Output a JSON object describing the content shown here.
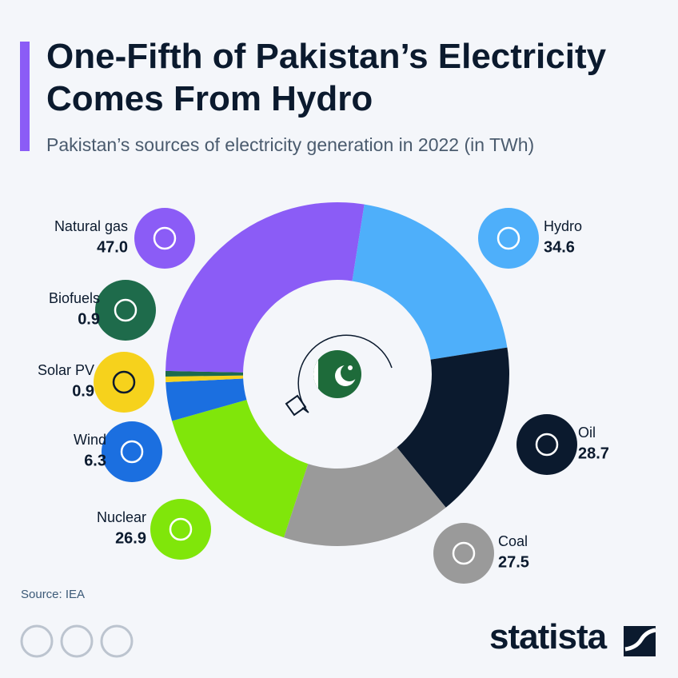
{
  "chart_data": {
    "type": "donut",
    "title": "One-Fifth of Pakistan’s Electricity Comes From Hydro",
    "subtitle": "Pakistan’s sources of electricity generation in 2022 (in TWh)",
    "categories": [
      "Hydro",
      "Oil",
      "Coal",
      "Nuclear",
      "Wind",
      "Solar PV",
      "Biofuels",
      "Natural gas"
    ],
    "values": [
      34.6,
      28.7,
      27.5,
      26.9,
      6.3,
      0.9,
      0.9,
      47.0
    ],
    "value_labels": [
      "34.6",
      "28.7",
      "27.5",
      "26.9",
      "6.3",
      "0.9",
      "0.9",
      "47.0"
    ],
    "colors": [
      "#4eaffa",
      "#0b1a2e",
      "#9a9a9a",
      "#80e60a",
      "#1b6fe0",
      "#f6d21c",
      "#1e6b4b",
      "#8b5cf6"
    ],
    "source": "Source: IEA",
    "brand": "statista"
  }
}
